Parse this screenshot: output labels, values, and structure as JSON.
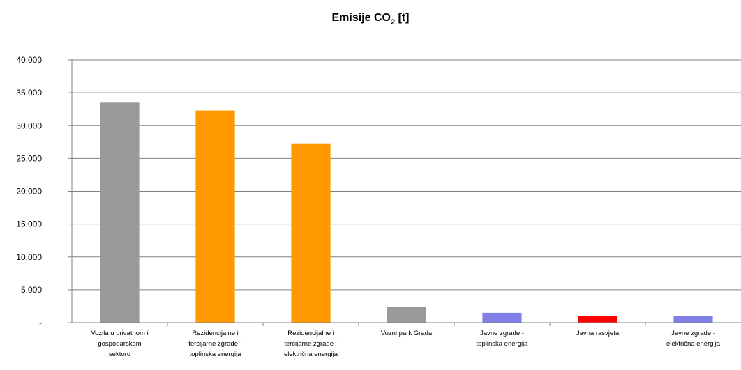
{
  "chart_data": {
    "type": "bar",
    "title": "Emisije CO",
    "title_sub": "2",
    "title_suffix": " [t]",
    "xlabel": "",
    "ylabel": "",
    "ylim": [
      0,
      40000
    ],
    "yticks": [
      0,
      5000,
      10000,
      15000,
      20000,
      25000,
      30000,
      35000,
      40000
    ],
    "ytick_labels": [
      "-",
      "5.000",
      "10.000",
      "15.000",
      "20.000",
      "25.000",
      "30.000",
      "35.000",
      "40.000"
    ],
    "grid": true,
    "legend": "none",
    "categories": [
      [
        "Vozila u privatnom i",
        "gospodarskom",
        "sektoru"
      ],
      [
        "Rezidencijalne i",
        "tercijarne zgrade -",
        "toplinska energija"
      ],
      [
        "Rezidencijalne i",
        "tercijarne zgrade -",
        "električna energija"
      ],
      [
        "Vozni park Grada"
      ],
      [
        "Javne zgrade -",
        "toplinska energija"
      ],
      [
        "Javna rasvjeta"
      ],
      [
        "Javne zgrade -",
        "električna energija"
      ]
    ],
    "values": [
      33500,
      32300,
      27300,
      2400,
      1500,
      1000,
      1000
    ],
    "colors": [
      "#999999",
      "#ff9900",
      "#ff9900",
      "#999999",
      "#8080e8",
      "#ff0000",
      "#8080e8"
    ]
  }
}
